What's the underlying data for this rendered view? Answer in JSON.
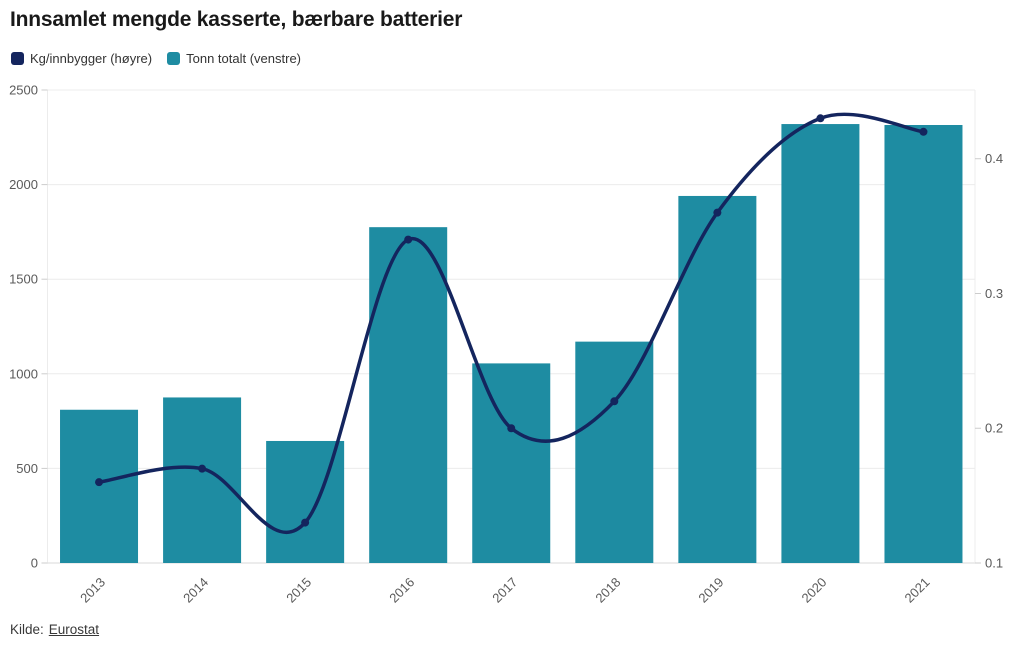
{
  "title": "Innsamlet mengde kasserte, bærbare batterier",
  "legend": [
    {
      "id": "kg-innbygger",
      "label": "Kg/innbygger (høyre)",
      "color": "#14255e"
    },
    {
      "id": "tonn-totalt",
      "label": "Tonn totalt (venstre)",
      "color": "#1e8ca2"
    }
  ],
  "source": {
    "prefix": "Kilde:",
    "link_label": "Eurostat"
  },
  "chart_data": {
    "type": "bar",
    "subtype": "bar+line-dual-axis",
    "title": "Innsamlet mengde kasserte, bærbare batterier",
    "categories": [
      "2013",
      "2014",
      "2015",
      "2016",
      "2017",
      "2018",
      "2019",
      "2020",
      "2021"
    ],
    "series": [
      {
        "name": "Tonn totalt (venstre)",
        "type": "bar",
        "axis": "left",
        "color": "#1e8ca2",
        "values": [
          810,
          875,
          645,
          1775,
          1055,
          1170,
          1940,
          2320,
          2315
        ]
      },
      {
        "name": "Kg/innbygger (høyre)",
        "type": "line",
        "axis": "right",
        "color": "#14255e",
        "values": [
          0.16,
          0.17,
          0.13,
          0.34,
          0.2,
          0.22,
          0.36,
          0.43,
          0.42
        ]
      }
    ],
    "left_axis": {
      "min": 0,
      "max": 2500,
      "ticks": [
        0,
        500,
        1000,
        1500,
        2000,
        2500
      ]
    },
    "right_axis": {
      "min": 0.1,
      "max": 0.451,
      "ticks": [
        0.1,
        0.2,
        0.3,
        0.4
      ]
    },
    "grid": true,
    "legend_position": "top-left",
    "source_text": "Kilde: Eurostat"
  }
}
